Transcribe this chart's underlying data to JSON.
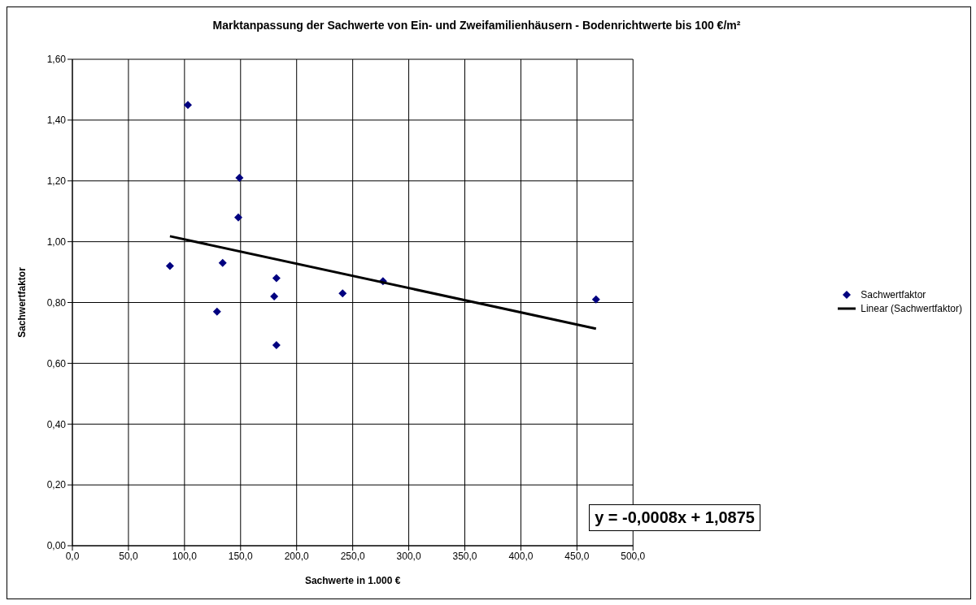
{
  "chart_data": {
    "type": "scatter",
    "title": "Marktanpassung der Sachwerte von Ein- und Zweifamilienhäusern - Bodenrichtwerte bis 100 €/m²",
    "xlabel": "Sachwerte in 1.000 €",
    "ylabel": "Sachwertfaktor",
    "series": [
      {
        "name": "Sachwertfaktor",
        "color": "#000080",
        "marker": "diamond",
        "x": [
          87,
          103,
          129,
          134,
          148,
          149,
          180,
          182,
          182,
          241,
          277,
          467
        ],
        "values": [
          0.92,
          1.45,
          0.77,
          0.93,
          1.08,
          1.21,
          0.82,
          0.88,
          0.66,
          0.83,
          0.87,
          0.81
        ]
      },
      {
        "name": "Linear (Sachwertfaktor)",
        "type": "line",
        "color": "#000000",
        "marker": "none",
        "x": [
          87,
          467
        ],
        "values": [
          1.018,
          0.714
        ]
      }
    ],
    "xlim": [
      0,
      500
    ],
    "xticks": [
      {
        "value": 0,
        "label": "0,0"
      },
      {
        "value": 50,
        "label": "50,0"
      },
      {
        "value": 100,
        "label": "100,0"
      },
      {
        "value": 150,
        "label": "150,0"
      },
      {
        "value": 200,
        "label": "200,0"
      },
      {
        "value": 250,
        "label": "250,0"
      },
      {
        "value": 300,
        "label": "300,0"
      },
      {
        "value": 350,
        "label": "350,0"
      },
      {
        "value": 400,
        "label": "400,0"
      },
      {
        "value": 450,
        "label": "450,0"
      },
      {
        "value": 500,
        "label": "500,0"
      }
    ],
    "ylim": [
      0,
      1.6
    ],
    "yticks": [
      {
        "value": 0,
        "label": "0,00"
      },
      {
        "value": 0.2,
        "label": "0,20"
      },
      {
        "value": 0.4,
        "label": "0,40"
      },
      {
        "value": 0.6,
        "label": "0,60"
      },
      {
        "value": 0.8,
        "label": "0,80"
      },
      {
        "value": 1,
        "label": "1,00"
      },
      {
        "value": 1.2,
        "label": "1,20"
      },
      {
        "value": 1.4,
        "label": "1,40"
      },
      {
        "value": 1.6,
        "label": "1,60"
      }
    ],
    "grid": true,
    "legend": "right",
    "annotations": [
      "y = -0,0008x + 1,0875"
    ]
  }
}
